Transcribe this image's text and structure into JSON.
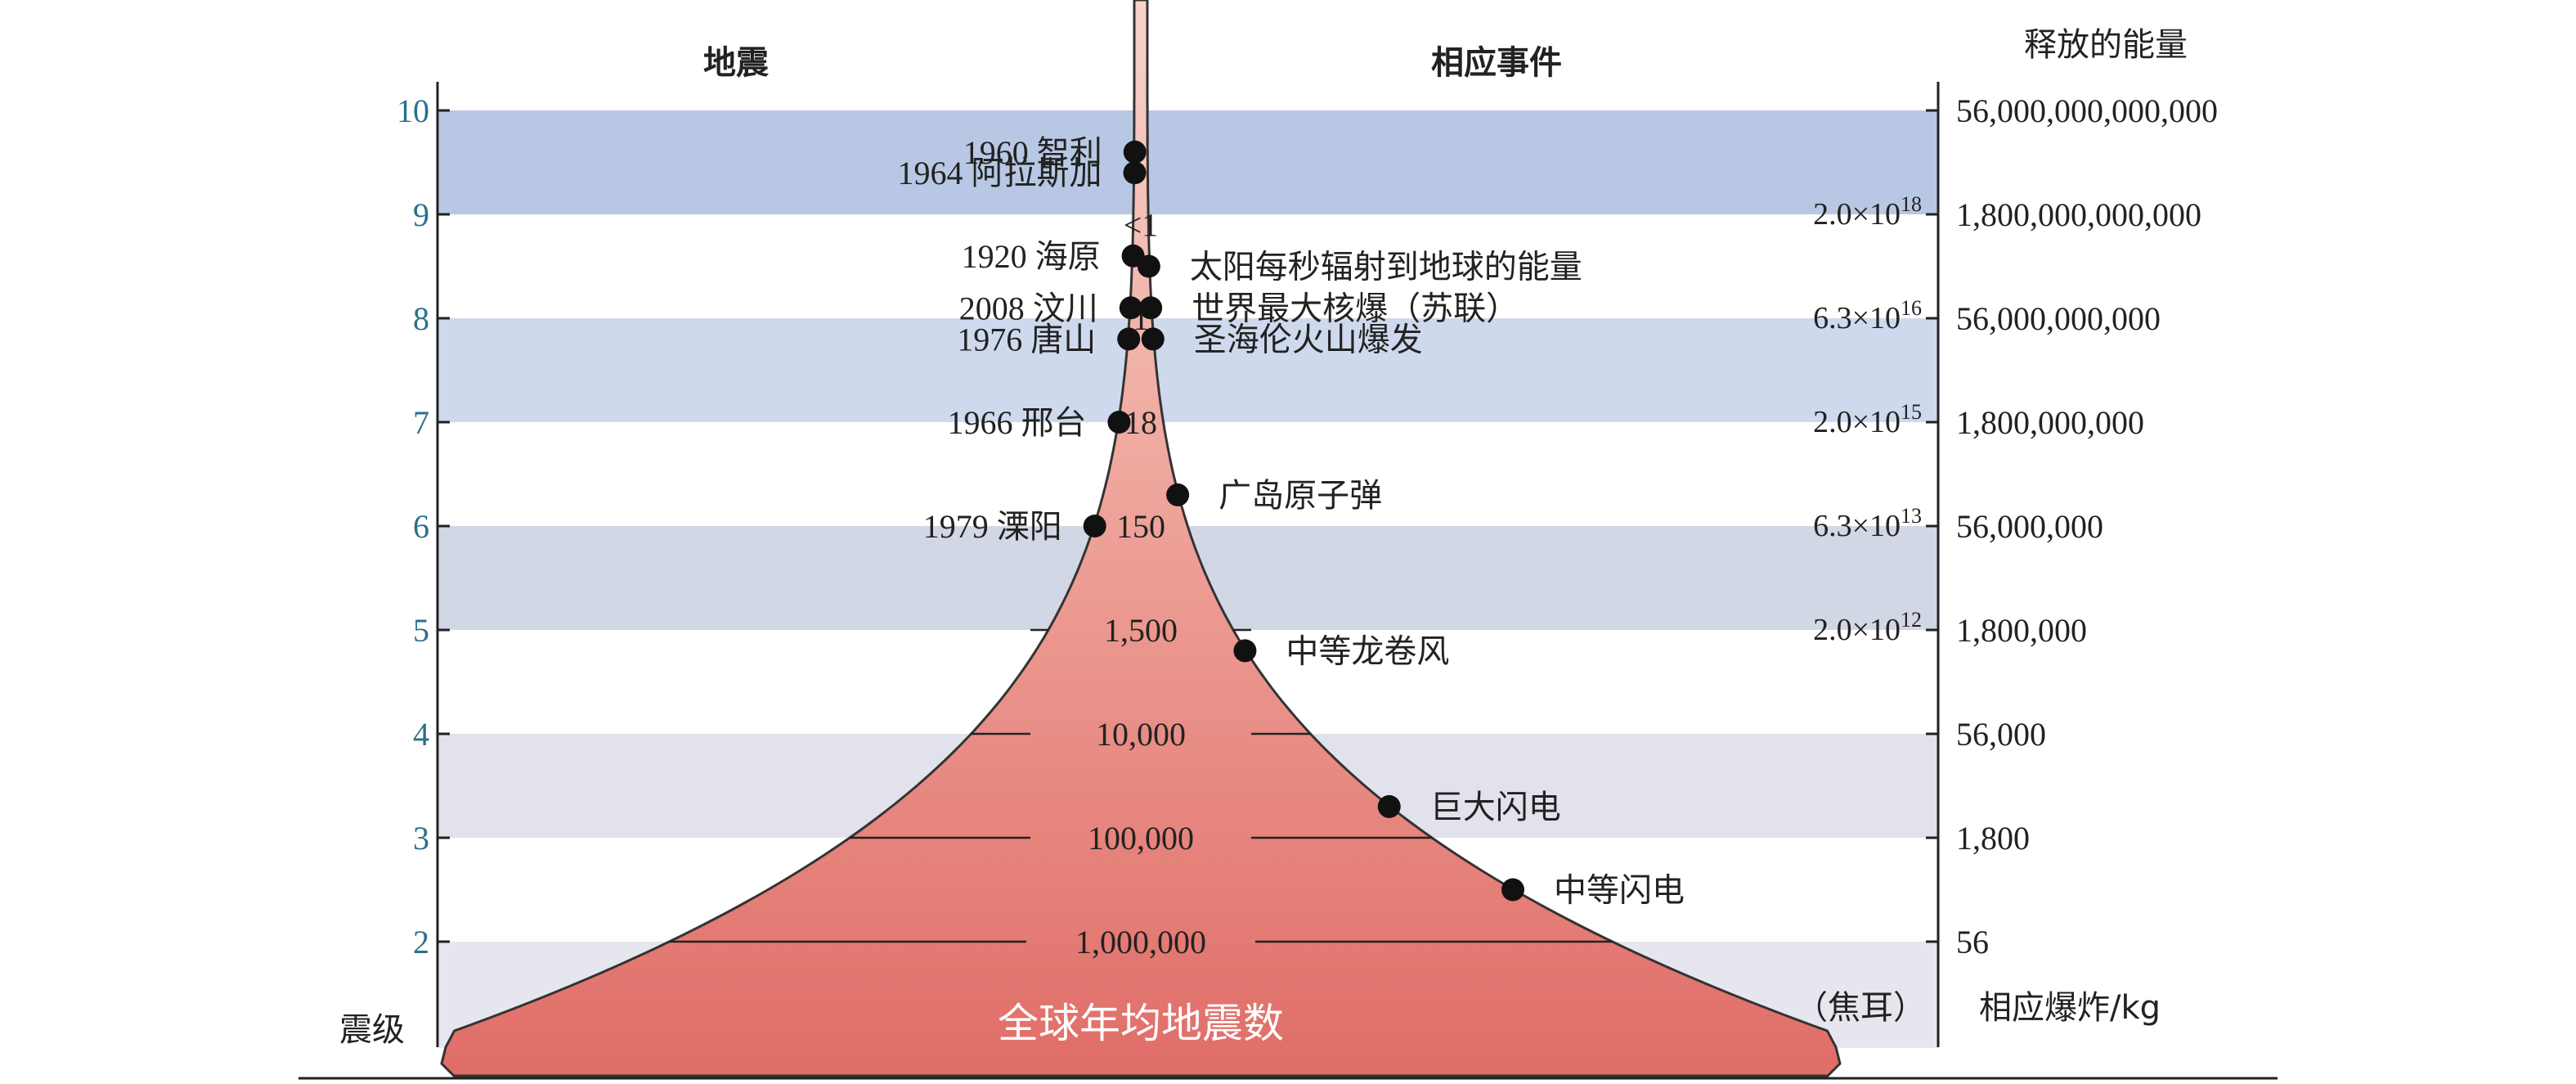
{
  "headers": {
    "earthquake": "地震",
    "events": "相应事件",
    "energy": "释放的能量"
  },
  "magnitude_label": "震级",
  "magnitudes": [
    "10",
    "9",
    "8",
    "7",
    "6",
    "5",
    "4",
    "3",
    "2"
  ],
  "energy_values": [
    "56,000,000,000,000",
    "1,800,000,000,000",
    "56,000,000,000",
    "1,800,000,000",
    "56,000,000",
    "1,800,000",
    "56,000",
    "1,800",
    "56"
  ],
  "explosive_label": "相应爆炸/kg",
  "joule_label": "（焦耳）",
  "joules": [
    {
      "mag": "9",
      "mantissa": "2.0×10",
      "exp": "18"
    },
    {
      "mag": "8",
      "mantissa": "6.3×10",
      "exp": "16"
    },
    {
      "mag": "7",
      "mantissa": "2.0×10",
      "exp": "15"
    },
    {
      "mag": "6",
      "mantissa": "6.3×10",
      "exp": "13"
    },
    {
      "mag": "5",
      "mantissa": "2.0×10",
      "exp": "12"
    }
  ],
  "annual_counts": [
    {
      "mag": 8.9,
      "text": "<1"
    },
    {
      "mag": 8.0,
      "text": "1"
    },
    {
      "mag": 7.0,
      "text": "18"
    },
    {
      "mag": 6.0,
      "text": "150"
    },
    {
      "mag": 5.0,
      "text": "1,500"
    },
    {
      "mag": 4.0,
      "text": "10,000"
    },
    {
      "mag": 3.0,
      "text": "100,000"
    },
    {
      "mag": 2.0,
      "text": "1,000,000"
    }
  ],
  "earthquakes": [
    {
      "label": "1960 智利",
      "mag": 9.6
    },
    {
      "label": "1964 阿拉斯加",
      "mag": 9.4
    },
    {
      "label": "1920 海原",
      "mag": 8.6
    },
    {
      "label": "2008 汶川",
      "mag": 8.1
    },
    {
      "label": "1976 唐山",
      "mag": 7.8
    },
    {
      "label": "1966 邢台",
      "mag": 7.0
    },
    {
      "label": "1979 溧阳",
      "mag": 6.0
    }
  ],
  "events": [
    {
      "label": "太阳每秒辐射到地球的能量",
      "mag": 8.5
    },
    {
      "label": "世界最大核爆（苏联）",
      "mag": 8.1
    },
    {
      "label": "圣海伦火山爆发",
      "mag": 7.8
    },
    {
      "label": "广岛原子弹",
      "mag": 6.3
    },
    {
      "label": "中等龙卷风",
      "mag": 4.8
    },
    {
      "label": "巨大闪电",
      "mag": 3.3
    },
    {
      "label": "中等闪电",
      "mag": 2.5
    }
  ],
  "funnel_caption": "全球年均地震数",
  "colors": {
    "band_top": "#b7c7e4",
    "band_mid": "#cfd8ec",
    "band_low": "#d0d5e4",
    "band_gray": "#e3e3ec",
    "funnel_top": "#f4c7bd",
    "funnel_bottom": "#e06d67",
    "mag_text": "#2b6f8c"
  }
}
